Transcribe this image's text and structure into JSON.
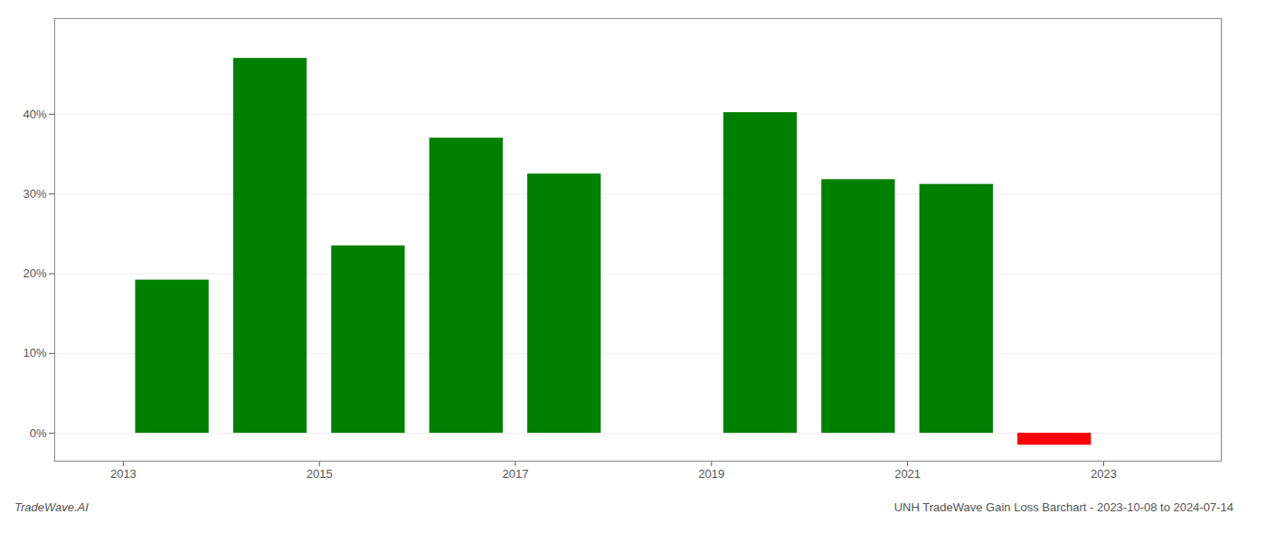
{
  "chart_data": {
    "type": "bar",
    "title": "UNH TradeWave Gain Loss Barchart - 2023-10-08 to 2024-07-14",
    "annotations": [
      "TradeWave.AI"
    ],
    "x": [
      2013,
      2014,
      2015,
      2016,
      2017,
      2018,
      2019,
      2020,
      2021,
      2022
    ],
    "values": [
      19.2,
      47.0,
      23.5,
      37.0,
      32.5,
      null,
      40.2,
      31.8,
      31.2,
      -1.5
    ],
    "colors": [
      "#008000",
      "#008000",
      "#008000",
      "#008000",
      "#008000",
      null,
      "#008000",
      "#008000",
      "#008000",
      "#ff0000"
    ],
    "xlim": [
      2012.3,
      2024.2
    ],
    "xticks": [
      2013,
      2015,
      2017,
      2019,
      2021,
      2023
    ],
    "ylim": [
      -3.5,
      52
    ],
    "yticks": [
      {
        "value": 0,
        "label": "0%"
      },
      {
        "value": 10,
        "label": "10%"
      },
      {
        "value": 20,
        "label": "20%"
      },
      {
        "value": 30,
        "label": "30%"
      },
      {
        "value": 40,
        "label": "40%"
      }
    ],
    "grid": true
  }
}
